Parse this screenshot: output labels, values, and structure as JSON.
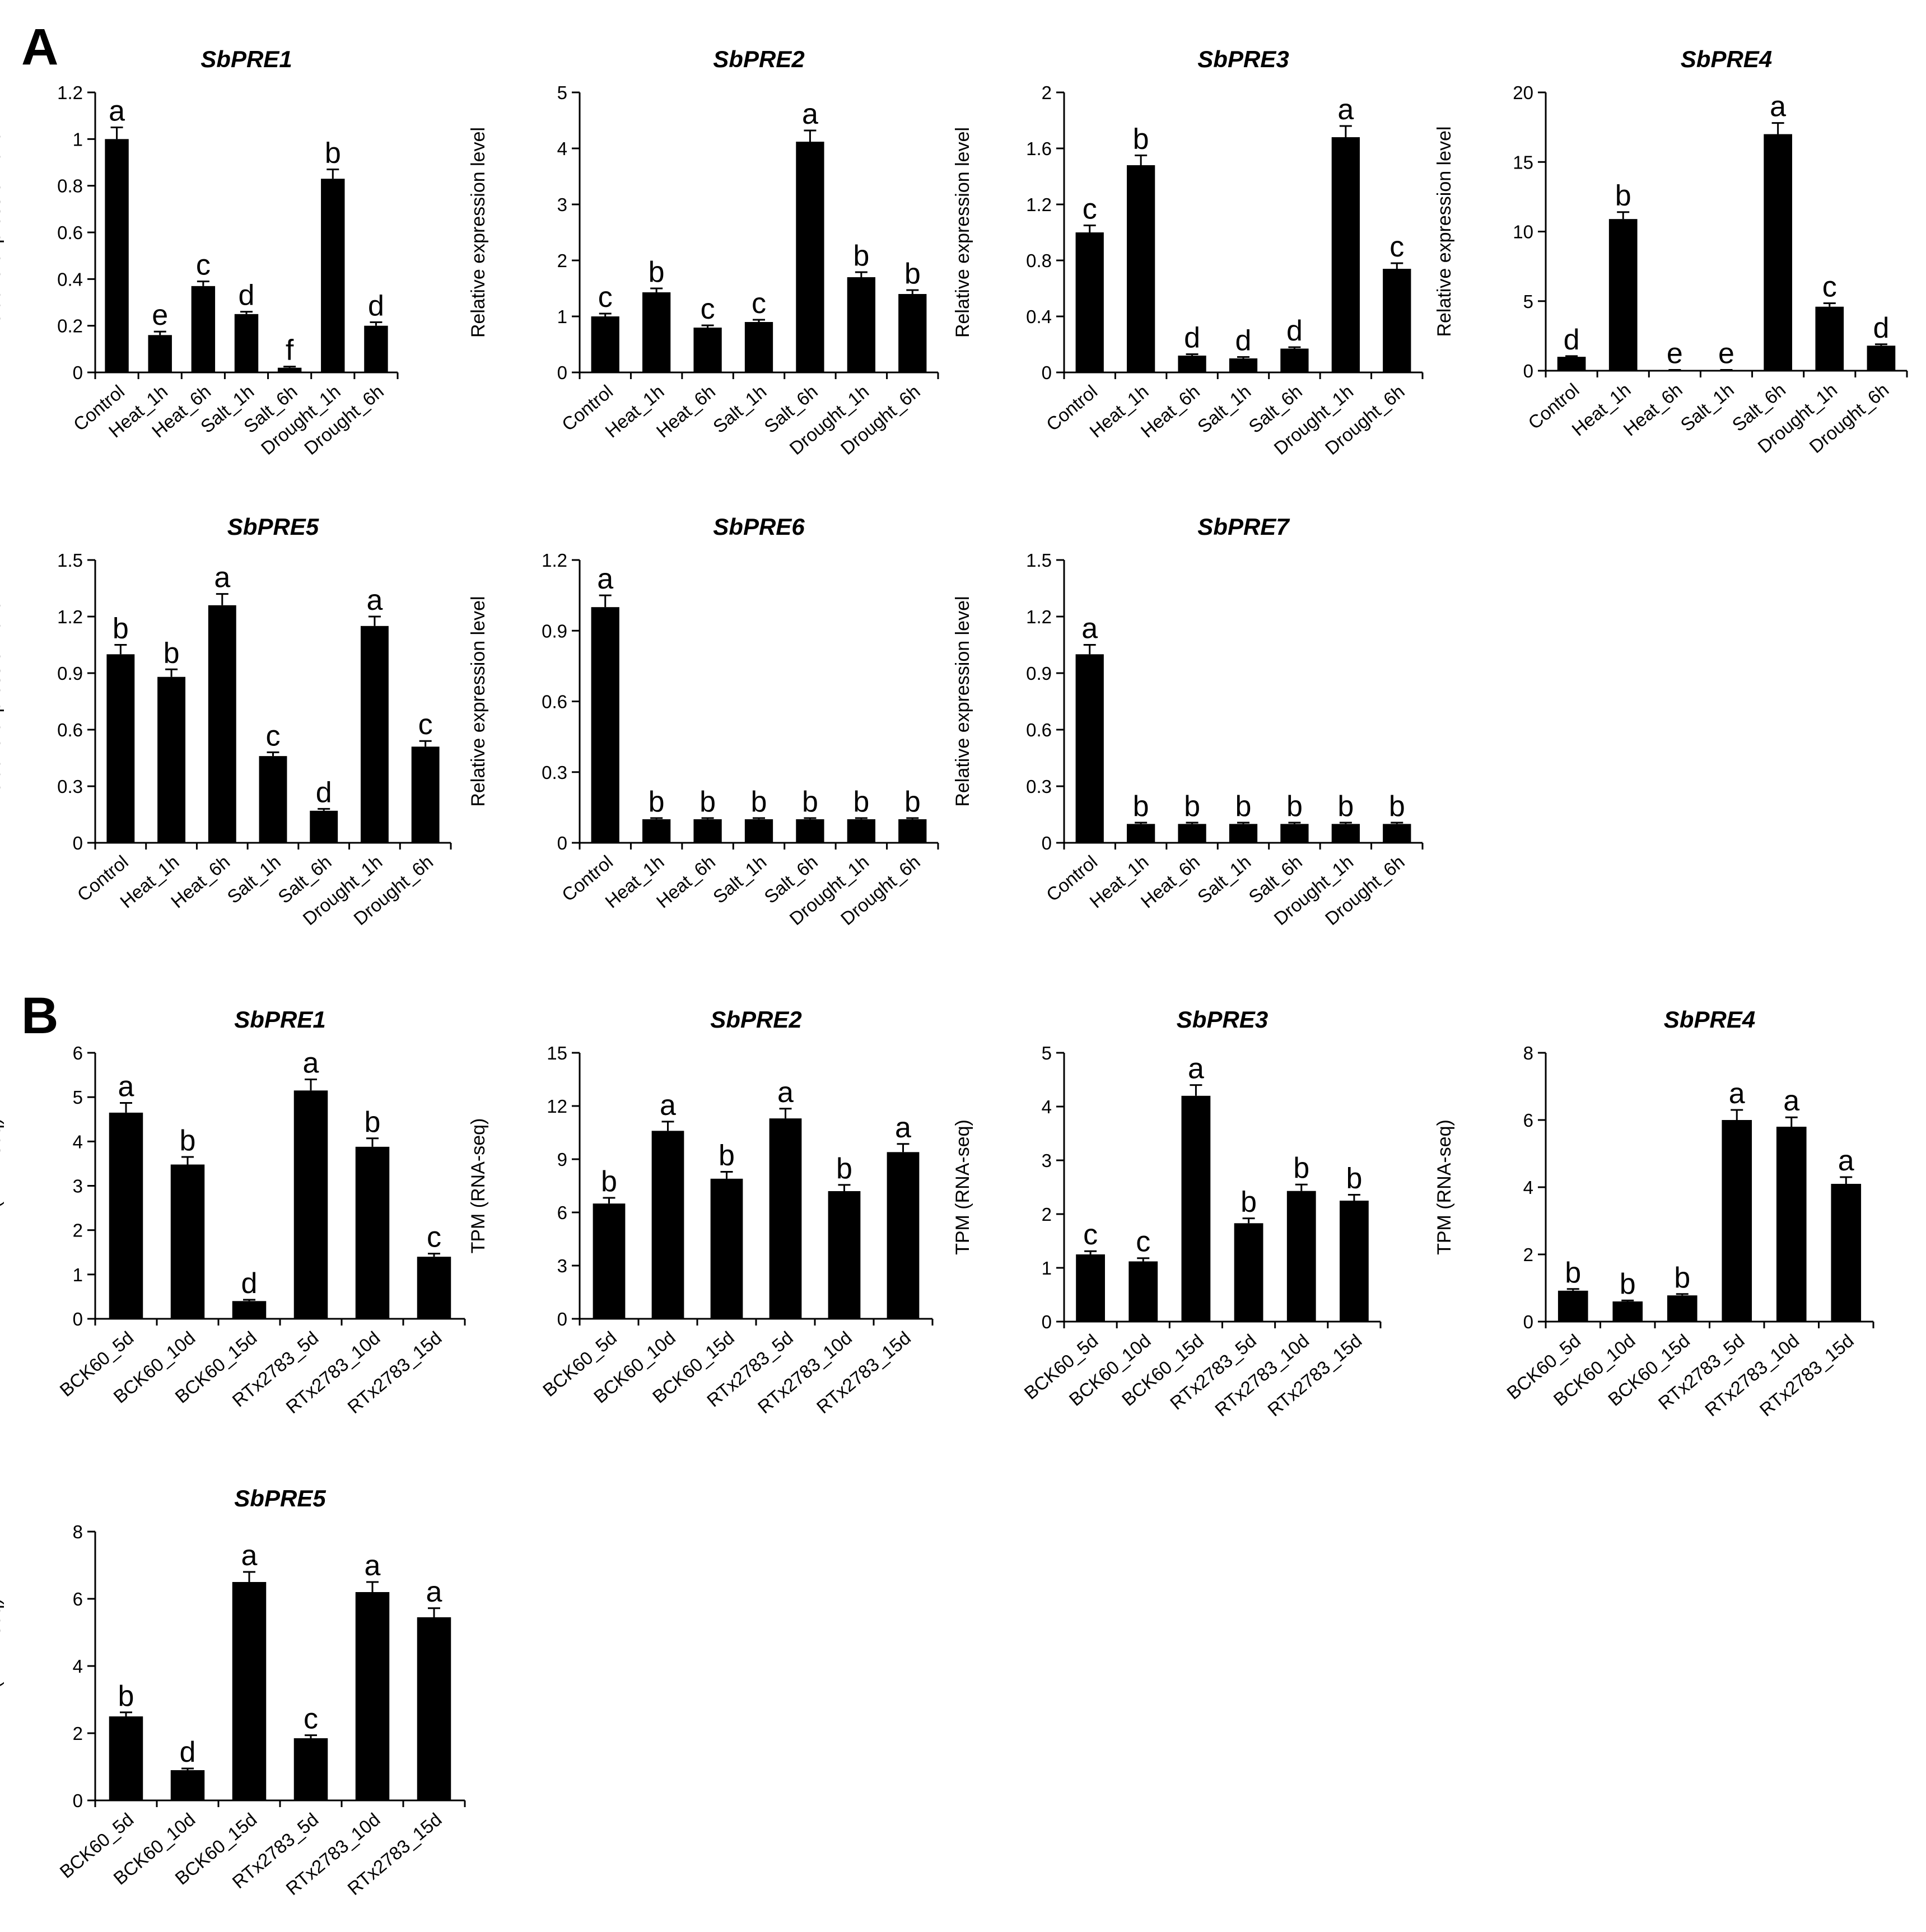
{
  "colors": {
    "bar": "#000000",
    "axis": "#000000",
    "background": "#ffffff"
  },
  "panels": [
    {
      "label": "A",
      "ylabel": "Relative expression level"
    },
    {
      "label": "B",
      "ylabel": "TPM (RNA-seq)"
    }
  ],
  "chart_data": [
    {
      "type": "bar",
      "panel": "A",
      "title": "SbPRE1",
      "ylabel": "Relative expression level",
      "categories": [
        "Control",
        "Heat_1h",
        "Heat_6h",
        "Salt_1h",
        "Salt_6h",
        "Drought_1h",
        "Drought_6h"
      ],
      "values": [
        1.0,
        0.16,
        0.37,
        0.25,
        0.02,
        0.83,
        0.2
      ],
      "errors": [
        0.05,
        0.015,
        0.02,
        0.01,
        0.005,
        0.04,
        0.015
      ],
      "letters": [
        "a",
        "e",
        "c",
        "d",
        "f",
        "b",
        "d"
      ],
      "ylim": [
        0,
        1.2
      ],
      "ticks": [
        "0",
        "0.2",
        "0.4",
        "0.6",
        "0.8",
        "1",
        "1.2"
      ]
    },
    {
      "type": "bar",
      "panel": "A",
      "title": "SbPRE2",
      "ylabel": "Relative expression level",
      "categories": [
        "Control",
        "Heat_1h",
        "Heat_6h",
        "Salt_1h",
        "Salt_6h",
        "Drought_1h",
        "Drought_6h"
      ],
      "values": [
        1.0,
        1.43,
        0.8,
        0.9,
        4.12,
        1.7,
        1.4
      ],
      "errors": [
        0.05,
        0.07,
        0.04,
        0.04,
        0.2,
        0.09,
        0.07
      ],
      "letters": [
        "c",
        "b",
        "c",
        "c",
        "a",
        "b",
        "b"
      ],
      "ylim": [
        0,
        5
      ],
      "ticks": [
        "0",
        "1",
        "2",
        "3",
        "4",
        "5"
      ]
    },
    {
      "type": "bar",
      "panel": "A",
      "title": "SbPRE3",
      "ylabel": "Relative expression level",
      "categories": [
        "Control",
        "Heat_1h",
        "Heat_6h",
        "Salt_1h",
        "Salt_6h",
        "Drought_1h",
        "Drought_6h"
      ],
      "values": [
        1.0,
        1.48,
        0.12,
        0.1,
        0.17,
        1.68,
        0.74
      ],
      "errors": [
        0.05,
        0.07,
        0.01,
        0.01,
        0.01,
        0.08,
        0.04
      ],
      "letters": [
        "c",
        "b",
        "d",
        "d",
        "d",
        "a",
        "c"
      ],
      "ylim": [
        0,
        2
      ],
      "ticks": [
        "0",
        "0.4",
        "0.8",
        "1.2",
        "1.6",
        "2"
      ]
    },
    {
      "type": "bar",
      "panel": "A",
      "title": "SbPRE4",
      "ylabel": "Relative expression level",
      "categories": [
        "Control",
        "Heat_1h",
        "Heat_6h",
        "Salt_1h",
        "Salt_6h",
        "Drought_1h",
        "Drought_6h"
      ],
      "values": [
        1.0,
        10.9,
        0.05,
        0.05,
        17.0,
        4.6,
        1.8
      ],
      "errors": [
        0.05,
        0.5,
        0.01,
        0.01,
        0.8,
        0.25,
        0.1
      ],
      "letters": [
        "d",
        "b",
        "e",
        "e",
        "a",
        "c",
        "d"
      ],
      "ylim": [
        0,
        20
      ],
      "ticks": [
        "0",
        "5",
        "10",
        "15",
        "20"
      ]
    },
    {
      "type": "bar",
      "panel": "A",
      "title": "SbPRE5",
      "ylabel": "Relative expression level",
      "categories": [
        "Control",
        "Heat_1h",
        "Heat_6h",
        "Salt_1h",
        "Salt_6h",
        "Drought_1h",
        "Drought_6h"
      ],
      "values": [
        1.0,
        0.88,
        1.26,
        0.46,
        0.17,
        1.15,
        0.51
      ],
      "errors": [
        0.05,
        0.04,
        0.06,
        0.02,
        0.01,
        0.05,
        0.03
      ],
      "letters": [
        "b",
        "b",
        "a",
        "c",
        "d",
        "a",
        "c"
      ],
      "ylim": [
        0,
        1.5
      ],
      "ticks": [
        "0",
        "0.3",
        "0.6",
        "0.9",
        "1.2",
        "1.5"
      ]
    },
    {
      "type": "bar",
      "panel": "A",
      "title": "SbPRE6",
      "ylabel": "Relative expression level",
      "categories": [
        "Control",
        "Heat_1h",
        "Heat_6h",
        "Salt_1h",
        "Salt_6h",
        "Drought_1h",
        "Drought_6h"
      ],
      "values": [
        1.0,
        0.1,
        0.1,
        0.1,
        0.1,
        0.1,
        0.1
      ],
      "errors": [
        0.05,
        0.005,
        0.005,
        0.005,
        0.005,
        0.005,
        0.005
      ],
      "letters": [
        "a",
        "b",
        "b",
        "b",
        "b",
        "b",
        "b"
      ],
      "ylim": [
        0,
        1.2
      ],
      "ticks": [
        "0",
        "0.3",
        "0.6",
        "0.9",
        "1.2"
      ]
    },
    {
      "type": "bar",
      "panel": "A",
      "title": "SbPRE7",
      "ylabel": "Relative expression level",
      "categories": [
        "Control",
        "Heat_1h",
        "Heat_6h",
        "Salt_1h",
        "Salt_6h",
        "Drought_1h",
        "Drought_6h"
      ],
      "values": [
        1.0,
        0.1,
        0.1,
        0.1,
        0.1,
        0.1,
        0.1
      ],
      "errors": [
        0.05,
        0.007,
        0.007,
        0.007,
        0.007,
        0.007,
        0.007
      ],
      "letters": [
        "a",
        "b",
        "b",
        "b",
        "b",
        "b",
        "b"
      ],
      "ylim": [
        0,
        1.5
      ],
      "ticks": [
        "0",
        "0.3",
        "0.6",
        "0.9",
        "1.2",
        "1.5"
      ]
    },
    {
      "type": "bar",
      "panel": "B",
      "title": "SbPRE1",
      "ylabel": "TPM (RNA-seq)",
      "categories": [
        "BCK60_5d",
        "BCK60_10d",
        "BCK60_15d",
        "RTx2783_5d",
        "RTx2783_10d",
        "RTx2783_15d"
      ],
      "values": [
        4.65,
        3.48,
        0.4,
        5.15,
        3.88,
        1.4
      ],
      "errors": [
        0.22,
        0.17,
        0.03,
        0.25,
        0.19,
        0.07
      ],
      "letters": [
        "a",
        "b",
        "d",
        "a",
        "b",
        "c"
      ],
      "ylim": [
        0,
        6
      ],
      "ticks": [
        "0",
        "1",
        "2",
        "3",
        "4",
        "5",
        "6"
      ]
    },
    {
      "type": "bar",
      "panel": "B",
      "title": "SbPRE2",
      "ylabel": "TPM (RNA-seq)",
      "categories": [
        "BCK60_5d",
        "BCK60_10d",
        "BCK60_15d",
        "RTx2783_5d",
        "RTx2783_10d",
        "RTx2783_15d"
      ],
      "values": [
        6.5,
        10.6,
        7.9,
        11.3,
        7.2,
        9.4
      ],
      "errors": [
        0.32,
        0.52,
        0.39,
        0.55,
        0.35,
        0.46
      ],
      "letters": [
        "b",
        "a",
        "b",
        "a",
        "b",
        "a"
      ],
      "ylim": [
        0,
        15
      ],
      "ticks": [
        "0",
        "3",
        "6",
        "9",
        "12",
        "15"
      ]
    },
    {
      "type": "bar",
      "panel": "B",
      "title": "SbPRE3",
      "ylabel": "TPM (RNA-seq)",
      "categories": [
        "BCK60_5d",
        "BCK60_10d",
        "BCK60_15d",
        "RTx2783_5d",
        "RTx2783_10d",
        "RTx2783_15d"
      ],
      "values": [
        1.25,
        1.12,
        4.2,
        1.83,
        2.43,
        2.25
      ],
      "errors": [
        0.06,
        0.06,
        0.2,
        0.09,
        0.12,
        0.11
      ],
      "letters": [
        "c",
        "c",
        "a",
        "b",
        "b",
        "b"
      ],
      "ylim": [
        0,
        5
      ],
      "ticks": [
        "0",
        "1",
        "2",
        "3",
        "4",
        "5"
      ]
    },
    {
      "type": "bar",
      "panel": "B",
      "title": "SbPRE4",
      "ylabel": "TPM (RNA-seq)",
      "categories": [
        "BCK60_5d",
        "BCK60_10d",
        "BCK60_15d",
        "RTx2783_5d",
        "RTx2783_10d",
        "RTx2783_15d"
      ],
      "values": [
        0.92,
        0.6,
        0.78,
        6.0,
        5.8,
        4.1
      ],
      "errors": [
        0.05,
        0.03,
        0.04,
        0.3,
        0.28,
        0.2
      ],
      "letters": [
        "b",
        "b",
        "b",
        "a",
        "a",
        "a"
      ],
      "ylim": [
        0,
        8
      ],
      "ticks": [
        "0",
        "2",
        "4",
        "6",
        "8"
      ]
    },
    {
      "type": "bar",
      "panel": "B",
      "title": "SbPRE5",
      "ylabel": "TPM (RNA-seq)",
      "categories": [
        "BCK60_5d",
        "BCK60_10d",
        "BCK60_15d",
        "RTx2783_5d",
        "RTx2783_10d",
        "RTx2783_15d"
      ],
      "values": [
        2.5,
        0.9,
        6.5,
        1.85,
        6.2,
        5.45
      ],
      "errors": [
        0.12,
        0.05,
        0.3,
        0.09,
        0.3,
        0.27
      ],
      "letters": [
        "b",
        "d",
        "a",
        "c",
        "a",
        "a"
      ],
      "ylim": [
        0,
        8
      ],
      "ticks": [
        "0",
        "2",
        "4",
        "6",
        "8"
      ]
    }
  ]
}
